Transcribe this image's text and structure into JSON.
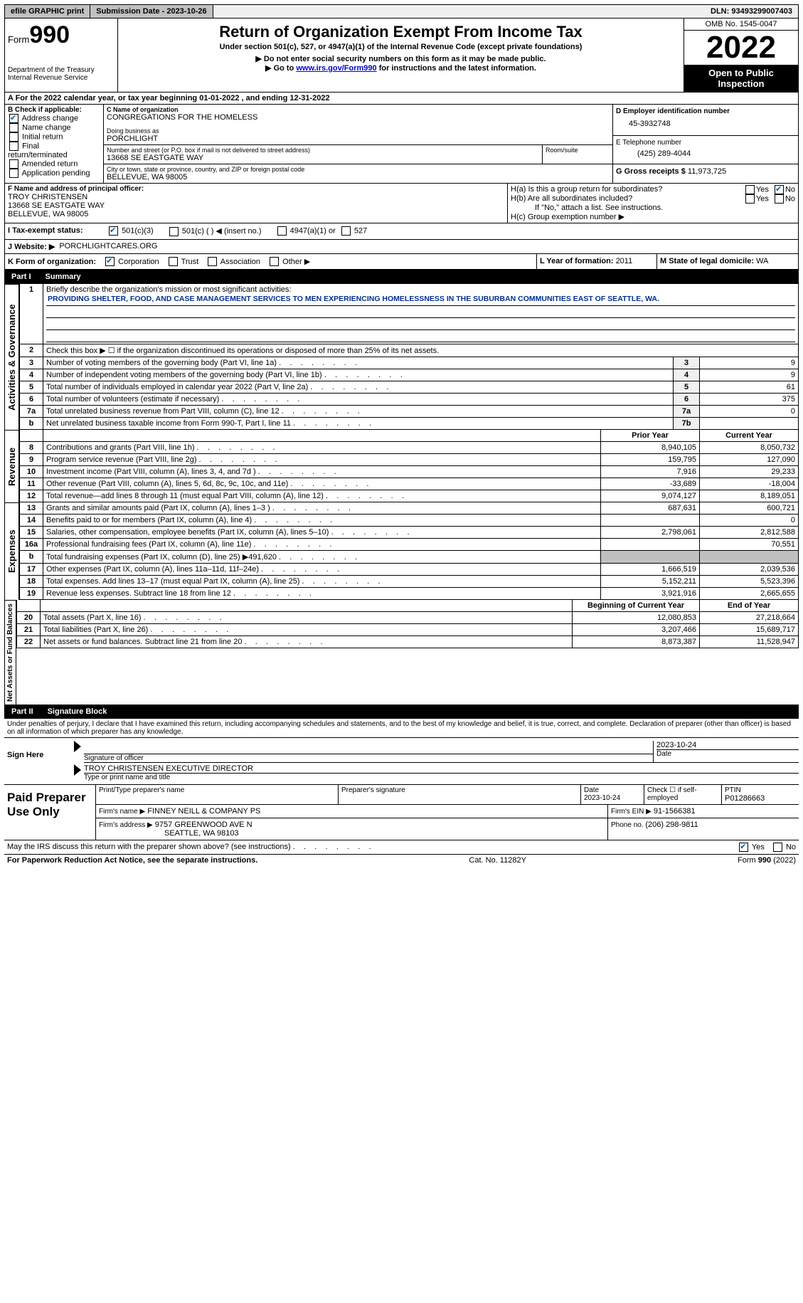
{
  "topbar": {
    "efile": "efile GRAPHIC print",
    "submission_label": "Submission Date - ",
    "submission_date": "2023-10-26",
    "dln_label": "DLN: ",
    "dln": "93493299007403"
  },
  "header": {
    "form_word": "Form",
    "form_no": "990",
    "dept": "Department of the Treasury",
    "irs": "Internal Revenue Service",
    "title": "Return of Organization Exempt From Income Tax",
    "subtitle": "Under section 501(c), 527, or 4947(a)(1) of the Internal Revenue Code (except private foundations)",
    "note1": "▶ Do not enter social security numbers on this form as it may be made public.",
    "note2_pre": "▶ Go to ",
    "note2_link": "www.irs.gov/Form990",
    "note2_post": " for instructions and the latest information.",
    "omb": "OMB No. 1545-0047",
    "year": "2022",
    "open": "Open to Public Inspection"
  },
  "periodA": {
    "text_pre": "A For the 2022 calendar year, or tax year beginning ",
    "begin": "01-01-2022",
    "mid": " , and ending ",
    "end": "12-31-2022"
  },
  "boxB": {
    "label": "B Check if applicable:",
    "items": [
      "Address change",
      "Name change",
      "Initial return",
      "Final return/terminated",
      "Amended return",
      "Application pending"
    ],
    "checked_idx": 0
  },
  "boxC": {
    "label": "C Name of organization",
    "name": "CONGREGATIONS FOR THE HOMELESS",
    "dba_label": "Doing business as",
    "dba": "PORCHLIGHT",
    "street_label": "Number and street (or P.O. box if mail is not delivered to street address)",
    "street": "13668 SE EASTGATE WAY",
    "room_label": "Room/suite",
    "city_label": "City or town, state or province, country, and ZIP or foreign postal code",
    "city": "BELLEVUE, WA  98005"
  },
  "boxD": {
    "label": "D Employer identification number",
    "value": "45-3932748"
  },
  "boxE": {
    "label": "E Telephone number",
    "value": "(425) 289-4044"
  },
  "boxG": {
    "label": "G Gross receipts $ ",
    "value": "11,973,725"
  },
  "boxF": {
    "label": "F Name and address of principal officer:",
    "name": "TROY CHRISTENSEN",
    "addr1": "13668 SE EASTGATE WAY",
    "addr2": "BELLEVUE, WA  98005"
  },
  "boxH": {
    "a_label": "H(a)  Is this a group return for subordinates?",
    "b_label": "H(b)  Are all subordinates included?",
    "b_note": "If \"No,\" attach a list. See instructions.",
    "c_label": "H(c)  Group exemption number ▶",
    "yes": "Yes",
    "no": "No"
  },
  "boxI": {
    "label": "I   Tax-exempt status:",
    "opts": [
      "501(c)(3)",
      "501(c) (  ) ◀ (insert no.)",
      "4947(a)(1) or",
      "527"
    ]
  },
  "boxJ": {
    "label": "J   Website: ▶",
    "value": "PORCHLIGHTCARES.ORG"
  },
  "boxK": {
    "label": "K Form of organization:",
    "opts": [
      "Corporation",
      "Trust",
      "Association",
      "Other ▶"
    ]
  },
  "boxL": {
    "label": "L Year of formation: ",
    "value": "2011"
  },
  "boxM": {
    "label": "M State of legal domicile: ",
    "value": "WA"
  },
  "part1": {
    "pt": "Part I",
    "title": "Summary"
  },
  "summary": {
    "l1_label": "Briefly describe the organization's mission or most significant activities:",
    "l1_text": "PROVIDING SHELTER, FOOD, AND CASE MANAGEMENT SERVICES TO MEN EXPERIENCING HOMELESSNESS IN THE SUBURBAN COMMUNITIES EAST OF SEATTLE, WA.",
    "l2": "Check this box ▶ ☐ if the organization discontinued its operations or disposed of more than 25% of its net assets.",
    "lines_act": [
      {
        "n": "3",
        "t": "Number of voting members of the governing body (Part VI, line 1a)",
        "box": "3",
        "v": "9"
      },
      {
        "n": "4",
        "t": "Number of independent voting members of the governing body (Part VI, line 1b)",
        "box": "4",
        "v": "9"
      },
      {
        "n": "5",
        "t": "Total number of individuals employed in calendar year 2022 (Part V, line 2a)",
        "box": "5",
        "v": "61"
      },
      {
        "n": "6",
        "t": "Total number of volunteers (estimate if necessary)",
        "box": "6",
        "v": "375"
      },
      {
        "n": "7a",
        "t": "Total unrelated business revenue from Part VIII, column (C), line 12",
        "box": "7a",
        "v": "0"
      },
      {
        "n": "b",
        "t": "Net unrelated business taxable income from Form 990-T, Part I, line 11",
        "box": "7b",
        "v": ""
      }
    ],
    "col_prior": "Prior Year",
    "col_current": "Current Year",
    "revenue": [
      {
        "n": "8",
        "t": "Contributions and grants (Part VIII, line 1h)",
        "p": "8,940,105",
        "c": "8,050,732"
      },
      {
        "n": "9",
        "t": "Program service revenue (Part VIII, line 2g)",
        "p": "159,795",
        "c": "127,090"
      },
      {
        "n": "10",
        "t": "Investment income (Part VIII, column (A), lines 3, 4, and 7d )",
        "p": "7,916",
        "c": "29,233"
      },
      {
        "n": "11",
        "t": "Other revenue (Part VIII, column (A), lines 5, 6d, 8c, 9c, 10c, and 11e)",
        "p": "-33,689",
        "c": "-18,004"
      },
      {
        "n": "12",
        "t": "Total revenue—add lines 8 through 11 (must equal Part VIII, column (A), line 12)",
        "p": "9,074,127",
        "c": "8,189,051"
      }
    ],
    "expenses": [
      {
        "n": "13",
        "t": "Grants and similar amounts paid (Part IX, column (A), lines 1–3 )",
        "p": "687,631",
        "c": "600,721"
      },
      {
        "n": "14",
        "t": "Benefits paid to or for members (Part IX, column (A), line 4)",
        "p": "",
        "c": "0"
      },
      {
        "n": "15",
        "t": "Salaries, other compensation, employee benefits (Part IX, column (A), lines 5–10)",
        "p": "2,798,061",
        "c": "2,812,588"
      },
      {
        "n": "16a",
        "t": "Professional fundraising fees (Part IX, column (A), line 11e)",
        "p": "",
        "c": "70,551"
      },
      {
        "n": "b",
        "t": "Total fundraising expenses (Part IX, column (D), line 25) ▶491,620",
        "p": "SHADE",
        "c": "SHADE"
      },
      {
        "n": "17",
        "t": "Other expenses (Part IX, column (A), lines 11a–11d, 11f–24e)",
        "p": "1,666,519",
        "c": "2,039,536"
      },
      {
        "n": "18",
        "t": "Total expenses. Add lines 13–17 (must equal Part IX, column (A), line 25)",
        "p": "5,152,211",
        "c": "5,523,396"
      },
      {
        "n": "19",
        "t": "Revenue less expenses. Subtract line 18 from line 12",
        "p": "3,921,916",
        "c": "2,665,655"
      }
    ],
    "col_begin": "Beginning of Current Year",
    "col_end": "End of Year",
    "netassets": [
      {
        "n": "20",
        "t": "Total assets (Part X, line 16)",
        "p": "12,080,853",
        "c": "27,218,664"
      },
      {
        "n": "21",
        "t": "Total liabilities (Part X, line 26)",
        "p": "3,207,466",
        "c": "15,689,717"
      },
      {
        "n": "22",
        "t": "Net assets or fund balances. Subtract line 21 from line 20",
        "p": "8,873,387",
        "c": "11,528,947"
      }
    ],
    "side_act": "Activities & Governance",
    "side_rev": "Revenue",
    "side_exp": "Expenses",
    "side_net": "Net Assets or Fund Balances"
  },
  "part2": {
    "pt": "Part II",
    "title": "Signature Block"
  },
  "sig": {
    "penalty": "Under penalties of perjury, I declare that I have examined this return, including accompanying schedules and statements, and to the best of my knowledge and belief, it is true, correct, and complete. Declaration of preparer (other than officer) is based on all information of which preparer has any knowledge.",
    "sign_here": "Sign Here",
    "sig_officer": "Signature of officer",
    "sig_date": "2023-10-24",
    "date_label": "Date",
    "officer_name": "TROY CHRISTENSEN  EXECUTIVE DIRECTOR",
    "officer_title_label": "Type or print name and title",
    "paid": "Paid Preparer Use Only",
    "prep_name_label": "Print/Type preparer's name",
    "prep_sig_label": "Preparer's signature",
    "prep_date_label": "Date",
    "prep_date": "2023-10-24",
    "check_self": "Check ☐ if self-employed",
    "ptin_label": "PTIN",
    "ptin": "P01286663",
    "firm_name_label": "Firm's name    ▶",
    "firm_name": "FINNEY NEILL & COMPANY PS",
    "firm_ein_label": "Firm's EIN ▶",
    "firm_ein": "91-1566381",
    "firm_addr_label": "Firm's address ▶",
    "firm_addr1": "9757 GREENWOOD AVE N",
    "firm_addr2": "SEATTLE, WA  98103",
    "firm_phone_label": "Phone no. ",
    "firm_phone": "(206) 298-9811",
    "may_irs": "May the IRS discuss this return with the preparer shown above? (see instructions)",
    "yes": "Yes",
    "no": "No"
  },
  "footer": {
    "pra": "For Paperwork Reduction Act Notice, see the separate instructions.",
    "cat": "Cat. No. 11282Y",
    "form": "Form 990 (2022)"
  }
}
